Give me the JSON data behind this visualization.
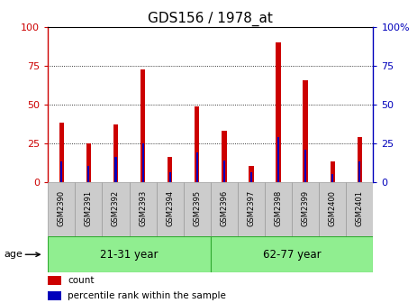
{
  "title": "GDS156 / 1978_at",
  "categories": [
    "GSM2390",
    "GSM2391",
    "GSM2392",
    "GSM2393",
    "GSM2394",
    "GSM2395",
    "GSM2396",
    "GSM2397",
    "GSM2398",
    "GSM2399",
    "GSM2400",
    "GSM2401"
  ],
  "count_values": [
    38,
    25,
    37,
    73,
    16,
    49,
    33,
    10,
    90,
    66,
    13,
    29
  ],
  "percentile_values": [
    13,
    10,
    16,
    25,
    6,
    19,
    14,
    6,
    29,
    21,
    5,
    13
  ],
  "count_bar_width": 0.18,
  "pct_bar_width": 0.07,
  "ylim": [
    0,
    100
  ],
  "yticks": [
    0,
    25,
    50,
    75,
    100
  ],
  "count_color": "#cc0000",
  "percentile_color": "#0000bb",
  "group1_label": "21-31 year",
  "group2_label": "62-77 year",
  "group1_indices": [
    0,
    1,
    2,
    3,
    4,
    5
  ],
  "group2_indices": [
    6,
    7,
    8,
    9,
    10,
    11
  ],
  "group_bg_color": "#90EE90",
  "group_border_color": "#33aa33",
  "age_label": "age",
  "legend_count": "count",
  "legend_percentile": "percentile rank within the sample",
  "left_axis_color": "#cc0000",
  "right_axis_color": "#0000bb",
  "title_fontsize": 11,
  "tick_fontsize": 8,
  "cat_fontsize": 6,
  "group_fontsize": 8.5,
  "legend_fontsize": 7.5,
  "age_fontsize": 8
}
